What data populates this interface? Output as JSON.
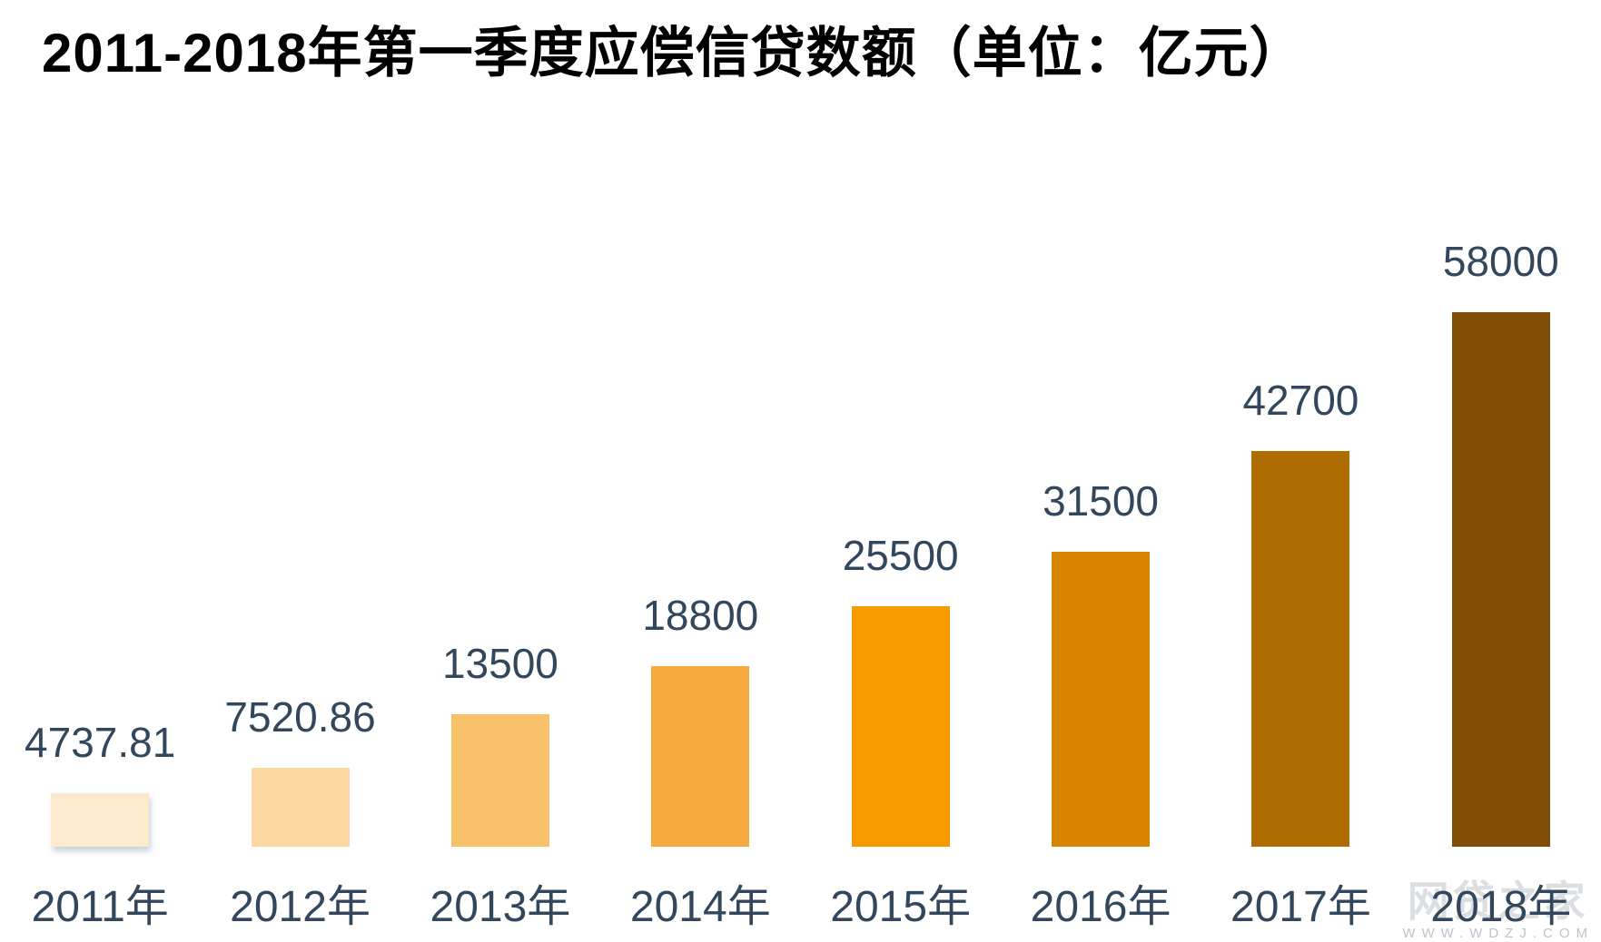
{
  "title": "2011-2018年第一季度应偿信贷数额（单位：亿元）",
  "watermark": {
    "name": "网贷之家",
    "url": "WWW.WDZJ.COM"
  },
  "chart_data": {
    "type": "bar",
    "title": "2011-2018年第一季度应偿信贷数额（单位：亿元）",
    "categories": [
      "2011年",
      "2012年",
      "2013年",
      "2014年",
      "2015年",
      "2016年",
      "2017年",
      "2018年"
    ],
    "values": [
      4737.81,
      7520.86,
      13500,
      18800,
      25500,
      31500,
      42700,
      58000
    ],
    "value_labels": [
      "4737.81",
      "7520.86",
      "13500",
      "18800",
      "25500",
      "31500",
      "42700",
      "58000"
    ],
    "unit": "亿元",
    "bar_colors": [
      "#FCE9CE",
      "#FBD7A1",
      "#F9C169",
      "#F6AB40",
      "#F59B00",
      "#D78500",
      "#AD6B02",
      "#7F4D04"
    ],
    "value_label_color": "#33475C",
    "axis_label_color": "#33475C",
    "xlabel": "",
    "ylabel": "",
    "ylim": [
      0,
      58000
    ],
    "grid": false,
    "legend_position": "none"
  }
}
